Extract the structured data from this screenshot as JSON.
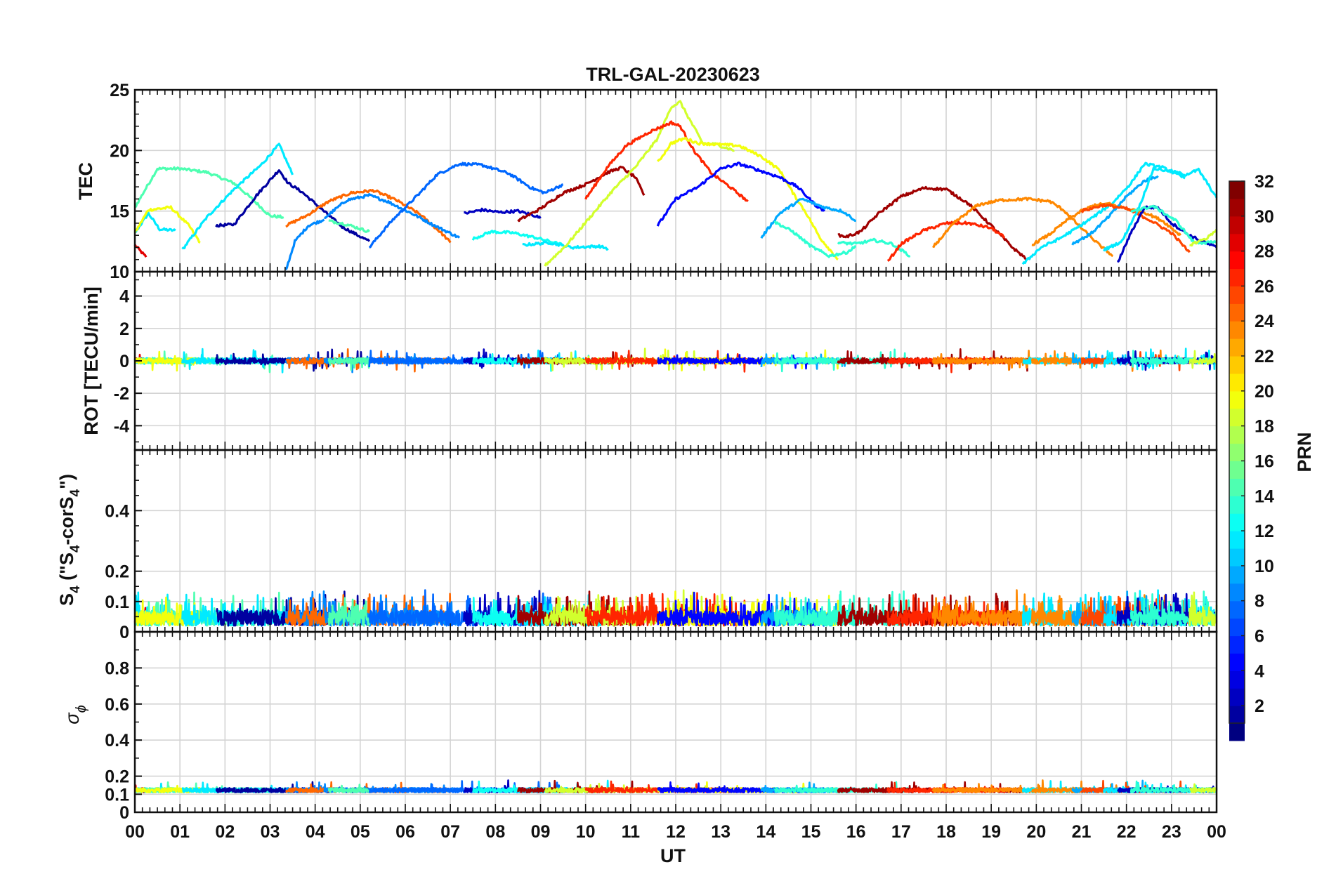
{
  "chart_data": {
    "type": "line",
    "title": "TRL-GAL-20230623",
    "xlabel": "UT",
    "x_ticks": [
      "00",
      "01",
      "02",
      "03",
      "04",
      "05",
      "06",
      "07",
      "08",
      "09",
      "10",
      "11",
      "12",
      "13",
      "14",
      "15",
      "16",
      "17",
      "18",
      "19",
      "20",
      "21",
      "22",
      "23",
      "00"
    ],
    "x_range_hours": [
      0,
      24
    ],
    "grid": true,
    "colormap": "jet",
    "colorbar": {
      "label": "PRN",
      "range": [
        1,
        32
      ],
      "tick_labels": [
        "2",
        "4",
        "6",
        "8",
        "10",
        "12",
        "14",
        "16",
        "18",
        "20",
        "22",
        "24",
        "26",
        "28",
        "30",
        "32"
      ],
      "placement": "right"
    },
    "panels": [
      {
        "id": "tec",
        "ylabel": "TEC",
        "ylim": [
          10,
          25
        ],
        "y_ticks": [
          "10",
          "15",
          "20",
          "25"
        ],
        "series": [
          {
            "prn": 29,
            "x": [
              0.0,
              0.25
            ],
            "y": [
              12.2,
              11.2
            ]
          },
          {
            "prn": 12,
            "x": [
              0.0,
              0.3,
              0.55,
              0.9
            ],
            "y": [
              13.2,
              14.8,
              13.5,
              13.4
            ]
          },
          {
            "prn": 15,
            "x": [
              0.0,
              0.5,
              1.0,
              1.6,
              2.2,
              2.6,
              3.0,
              3.3
            ],
            "y": [
              15.3,
              18.5,
              18.5,
              18.2,
              17.3,
              16.0,
              14.6,
              14.5
            ]
          },
          {
            "prn": 20,
            "x": [
              0.0,
              0.3,
              0.8,
              1.2,
              1.45
            ],
            "y": [
              13.2,
              15.1,
              15.3,
              13.8,
              12.4
            ]
          },
          {
            "prn": 12,
            "x": [
              1.05,
              1.6,
              2.2,
              2.8,
              3.2,
              3.5
            ],
            "y": [
              11.8,
              14.5,
              16.8,
              18.8,
              20.5,
              18.0
            ]
          },
          {
            "prn": 2,
            "x": [
              1.8,
              2.2,
              2.7,
              3.2,
              3.4,
              3.7,
              4.1,
              4.6,
              5.2
            ],
            "y": [
              13.8,
              13.9,
              16.3,
              18.4,
              17.3,
              16.6,
              15.3,
              13.7,
              12.5
            ]
          },
          {
            "prn": 9,
            "x": [
              3.35,
              3.55,
              3.85,
              4.2
            ],
            "y": [
              10.1,
              12.5,
              13.8,
              14.3
            ]
          },
          {
            "prn": 25,
            "x": [
              3.35,
              3.8,
              4.3,
              4.8,
              5.3,
              5.8,
              6.3,
              6.8,
              7.0
            ],
            "y": [
              13.8,
              14.6,
              15.8,
              16.5,
              16.7,
              15.9,
              14.8,
              13.2,
              12.4
            ]
          },
          {
            "prn": 9,
            "x": [
              4.2,
              4.7,
              5.2,
              5.6,
              6.2,
              6.6,
              7.2
            ],
            "y": [
              14.4,
              15.9,
              16.3,
              15.8,
              14.7,
              13.9,
              12.8
            ]
          },
          {
            "prn": 15,
            "x": [
              4.3,
              4.7,
              5.2
            ],
            "y": [
              14.2,
              13.9,
              13.3
            ]
          },
          {
            "prn": 8,
            "x": [
              5.2,
              5.7,
              6.3,
              6.7,
              7.2,
              7.7,
              8.3,
              8.8,
              9.1,
              9.5
            ],
            "y": [
              12.0,
              14.2,
              16.4,
              18.0,
              18.9,
              18.8,
              18.1,
              16.9,
              16.5,
              17.2
            ]
          },
          {
            "prn": 3,
            "x": [
              7.3,
              7.7,
              8.1,
              8.5,
              8.9,
              9.0
            ],
            "y": [
              14.8,
              15.1,
              14.9,
              15.0,
              14.6,
              14.4
            ]
          },
          {
            "prn": 13,
            "x": [
              7.5,
              7.9,
              8.4,
              8.9,
              9.5
            ],
            "y": [
              12.7,
              13.3,
              13.2,
              12.8,
              12.2
            ]
          },
          {
            "prn": 12,
            "x": [
              8.6,
              9.2,
              9.7,
              10.3,
              10.5
            ],
            "y": [
              12.2,
              12.4,
              12.0,
              12.1,
              11.9
            ]
          },
          {
            "prn": 31,
            "x": [
              8.5,
              9.0,
              9.5,
              10.0,
              10.5,
              10.8,
              11.1,
              11.3
            ],
            "y": [
              14.2,
              15.2,
              16.5,
              17.2,
              18.2,
              18.6,
              17.8,
              16.3
            ]
          },
          {
            "prn": 19,
            "x": [
              9.1,
              9.6,
              10.1,
              10.6,
              11.1,
              11.6,
              11.9,
              12.1,
              12.3,
              12.6,
              12.9,
              13.3
            ],
            "y": [
              10.5,
              12.3,
              14.5,
              16.7,
              18.6,
              21.0,
              23.6,
              24.0,
              22.6,
              20.6,
              20.5,
              20.0
            ]
          },
          {
            "prn": 27,
            "x": [
              10.0,
              10.5,
              10.9,
              11.4,
              11.9,
              12.1,
              12.4,
              12.8,
              13.2,
              13.6
            ],
            "y": [
              16.0,
              18.7,
              20.4,
              21.5,
              22.3,
              22.0,
              20.0,
              18.1,
              17.0,
              15.8
            ]
          },
          {
            "prn": 20,
            "x": [
              11.6,
              11.9,
              12.2,
              12.5,
              12.9,
              13.4,
              13.9,
              14.3,
              14.6,
              14.9,
              15.2,
              15.6
            ],
            "y": [
              19.0,
              20.6,
              21.0,
              20.6,
              20.5,
              20.4,
              19.5,
              18.4,
              16.5,
              14.8,
              12.8,
              11.0
            ]
          },
          {
            "prn": 5,
            "x": [
              11.6,
              12.0,
              12.5,
              13.0,
              13.4,
              13.9,
              14.3,
              14.7,
              15.1,
              15.3
            ],
            "y": [
              13.8,
              16.0,
              17.0,
              18.5,
              18.9,
              18.3,
              17.8,
              17.0,
              15.5,
              15.0
            ]
          },
          {
            "prn": 10,
            "x": [
              13.9,
              14.3,
              14.8,
              15.3,
              15.7,
              16.0
            ],
            "y": [
              12.8,
              14.8,
              16.0,
              15.3,
              15.0,
              14.2
            ]
          },
          {
            "prn": 14,
            "x": [
              14.2,
              14.6,
              15.0,
              15.4,
              15.8,
              16.0
            ],
            "y": [
              14.1,
              13.3,
              12.1,
              11.3,
              11.6,
              12.1
            ]
          },
          {
            "prn": 14,
            "x": [
              15.6,
              16.0,
              16.4,
              16.8,
              17.2
            ],
            "y": [
              12.4,
              12.3,
              12.6,
              12.3,
              11.3
            ]
          },
          {
            "prn": 31,
            "x": [
              15.6,
              15.8,
              16.1,
              16.5,
              17.0,
              17.5,
              18.0,
              18.5,
              19.0,
              19.5,
              19.8
            ],
            "y": [
              13.0,
              12.9,
              13.3,
              14.8,
              16.2,
              16.9,
              16.8,
              15.6,
              13.8,
              11.9,
              11.0
            ]
          },
          {
            "prn": 27,
            "x": [
              16.7,
              17.0,
              17.5,
              18.0,
              18.5,
              19.0,
              19.3
            ],
            "y": [
              10.8,
              12.3,
              13.4,
              14.0,
              14.0,
              13.6,
              12.8
            ]
          },
          {
            "prn": 24,
            "x": [
              17.7,
              18.2,
              18.7,
              19.2,
              19.8,
              20.3,
              20.6,
              21.0,
              21.4,
              21.7
            ],
            "y": [
              12.0,
              14.1,
              15.5,
              15.9,
              16.0,
              15.8,
              15.1,
              13.6,
              12.2,
              11.3
            ]
          },
          {
            "prn": 12,
            "x": [
              19.7,
              20.1,
              20.5,
              20.9,
              21.3,
              21.7,
              22.1,
              22.4,
              22.8,
              23.3
            ],
            "y": [
              10.6,
              12.0,
              12.7,
              13.6,
              14.6,
              15.7,
              17.3,
              18.9,
              18.6,
              17.7
            ]
          },
          {
            "prn": 24,
            "x": [
              19.9,
              20.3,
              20.7,
              21.0,
              21.3,
              21.6,
              22.0,
              22.4,
              22.8,
              23.2
            ],
            "y": [
              12.2,
              13.1,
              14.3,
              15.0,
              15.5,
              15.6,
              15.2,
              14.9,
              14.2,
              13.0
            ]
          },
          {
            "prn": 10,
            "x": [
              20.8,
              21.2,
              21.6,
              22.0,
              22.4,
              22.7
            ],
            "y": [
              12.3,
              13.1,
              14.5,
              16.2,
              17.5,
              17.9
            ]
          },
          {
            "prn": 26,
            "x": [
              21.0,
              21.5,
              22.0,
              22.5,
              23.0,
              23.4
            ],
            "y": [
              15.0,
              15.5,
              15.2,
              14.3,
              13.2,
              11.6
            ]
          },
          {
            "prn": 12,
            "x": [
              21.5,
              21.9,
              22.3,
              22.6,
              23.0,
              23.3,
              23.6,
              24.0
            ],
            "y": [
              11.8,
              12.5,
              15.5,
              18.5,
              18.3,
              18.0,
              18.4,
              16.1
            ]
          },
          {
            "prn": 3,
            "x": [
              21.8,
              22.1,
              22.4,
              22.7,
              23.0,
              23.4,
              23.8,
              24.0
            ],
            "y": [
              10.7,
              13.2,
              15.3,
              15.3,
              14.0,
              13.0,
              12.3,
              12.0
            ]
          },
          {
            "prn": 14,
            "x": [
              22.1,
              22.6,
              23.1,
              23.5,
              24.0
            ],
            "y": [
              15.0,
              15.4,
              14.2,
              12.4,
              12.4
            ]
          },
          {
            "prn": 19,
            "x": [
              23.4,
              23.8,
              24.0
            ],
            "y": [
              12.2,
              12.8,
              13.5
            ]
          }
        ]
      },
      {
        "id": "rot",
        "ylabel": "ROT [TECU/min]",
        "ylim": [
          -5.5,
          5.5
        ],
        "y_ticks": [
          "-4",
          "-2",
          "0",
          "2",
          "4"
        ]
      },
      {
        "id": "s4",
        "ylabel": "S4 (\"S4-corS4\")",
        "ylim": [
          0,
          0.6
        ],
        "y_ticks": [
          "0",
          "0.1",
          "0.2",
          "0.4"
        ]
      },
      {
        "id": "sigma",
        "ylabel": "σφ",
        "ylim": [
          0,
          1
        ],
        "y_ticks": [
          "0",
          "0.1",
          "0.2",
          "0.4",
          "0.6",
          "0.8"
        ]
      }
    ]
  }
}
